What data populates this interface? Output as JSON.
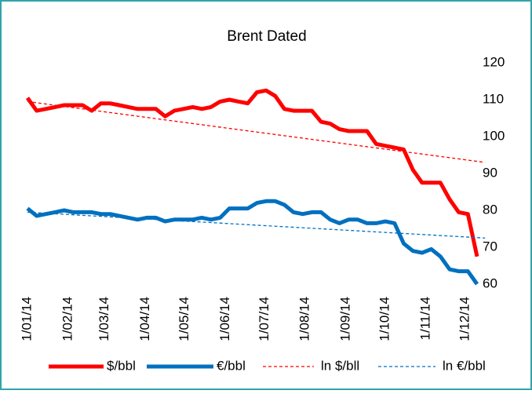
{
  "chart_data": {
    "type": "line",
    "title": "Brent Dated",
    "x": [
      "2014-01-01",
      "2014-01-08",
      "2014-01-15",
      "2014-01-22",
      "2014-01-29",
      "2014-02-05",
      "2014-02-12",
      "2014-02-19",
      "2014-02-26",
      "2014-03-05",
      "2014-03-12",
      "2014-03-19",
      "2014-03-26",
      "2014-04-02",
      "2014-04-09",
      "2014-04-16",
      "2014-04-23",
      "2014-04-30",
      "2014-05-07",
      "2014-05-14",
      "2014-05-21",
      "2014-05-28",
      "2014-06-04",
      "2014-06-11",
      "2014-06-18",
      "2014-06-25",
      "2014-07-02",
      "2014-07-09",
      "2014-07-16",
      "2014-07-23",
      "2014-07-30",
      "2014-08-06",
      "2014-08-13",
      "2014-08-20",
      "2014-08-27",
      "2014-09-03",
      "2014-09-10",
      "2014-09-17",
      "2014-09-24",
      "2014-10-01",
      "2014-10-08",
      "2014-10-15",
      "2014-10-22",
      "2014-10-29",
      "2014-11-05",
      "2014-11-12",
      "2014-11-19",
      "2014-11-26",
      "2014-12-03",
      "2014-12-10"
    ],
    "series": [
      {
        "name": "$/bbl",
        "color": "#ff0000",
        "width": 5,
        "dash": false,
        "values": [
          110.5,
          107,
          107.5,
          108,
          108.5,
          108.5,
          108.5,
          107,
          109,
          109,
          108.5,
          108,
          107.5,
          107.5,
          107.5,
          105.5,
          107,
          107.5,
          108,
          107.5,
          108,
          109.5,
          110,
          109.5,
          109,
          112,
          112.5,
          111,
          107.5,
          107,
          107,
          107,
          104,
          103.5,
          102,
          101.5,
          101.5,
          101.5,
          98,
          97.5,
          97,
          96.5,
          91,
          87.5,
          87.5,
          87.5,
          83,
          79.5,
          79,
          67.5
        ]
      },
      {
        "name": "€/bbl",
        "color": "#0070c0",
        "width": 5,
        "dash": false,
        "values": [
          80.5,
          78.5,
          79,
          79.5,
          80,
          79.5,
          79.5,
          79.5,
          79,
          79,
          78.5,
          78,
          77.5,
          78,
          78,
          77,
          77.5,
          77.5,
          77.5,
          78,
          77.5,
          78,
          80.5,
          80.5,
          80.5,
          82,
          82.5,
          82.5,
          81.5,
          79.5,
          79,
          79.5,
          79.5,
          77.5,
          76.5,
          77.5,
          77.5,
          76.5,
          76.5,
          77,
          76.5,
          71,
          69,
          68.5,
          69.5,
          67.5,
          64,
          63.5,
          63.5,
          60
        ]
      },
      {
        "name": "ln $/bll",
        "color": "#ff0000",
        "width": 1.3,
        "dash": true,
        "x": [
          "2014-01-01",
          "2014-12-16"
        ],
        "values": [
          109.5,
          93
        ]
      },
      {
        "name": "ln €/bbl",
        "color": "#0070c0",
        "width": 1.3,
        "dash": true,
        "x": [
          "2014-01-01",
          "2014-12-16"
        ],
        "values": [
          79.5,
          72.5
        ]
      }
    ],
    "xlim": [
      "2014-01-01",
      "2014-12-01"
    ],
    "xticks": [
      {
        "value": "2014-01-01",
        "label": "1/01/14"
      },
      {
        "value": "2014-02-01",
        "label": "1/02/14"
      },
      {
        "value": "2014-03-01",
        "label": "1/03/14"
      },
      {
        "value": "2014-04-01",
        "label": "1/04/14"
      },
      {
        "value": "2014-05-01",
        "label": "1/05/14"
      },
      {
        "value": "2014-06-01",
        "label": "1/06/14"
      },
      {
        "value": "2014-07-01",
        "label": "1/07/14"
      },
      {
        "value": "2014-08-01",
        "label": "1/08/14"
      },
      {
        "value": "2014-09-01",
        "label": "1/09/14"
      },
      {
        "value": "2014-10-01",
        "label": "1/10/14"
      },
      {
        "value": "2014-11-01",
        "label": "1/11/14"
      },
      {
        "value": "2014-12-01",
        "label": "1/12/14"
      }
    ],
    "ylim": [
      60,
      120
    ],
    "yticks": [
      60,
      70,
      80,
      90,
      100,
      110,
      120
    ],
    "y_axis_side": "right",
    "legend": "bottom"
  }
}
